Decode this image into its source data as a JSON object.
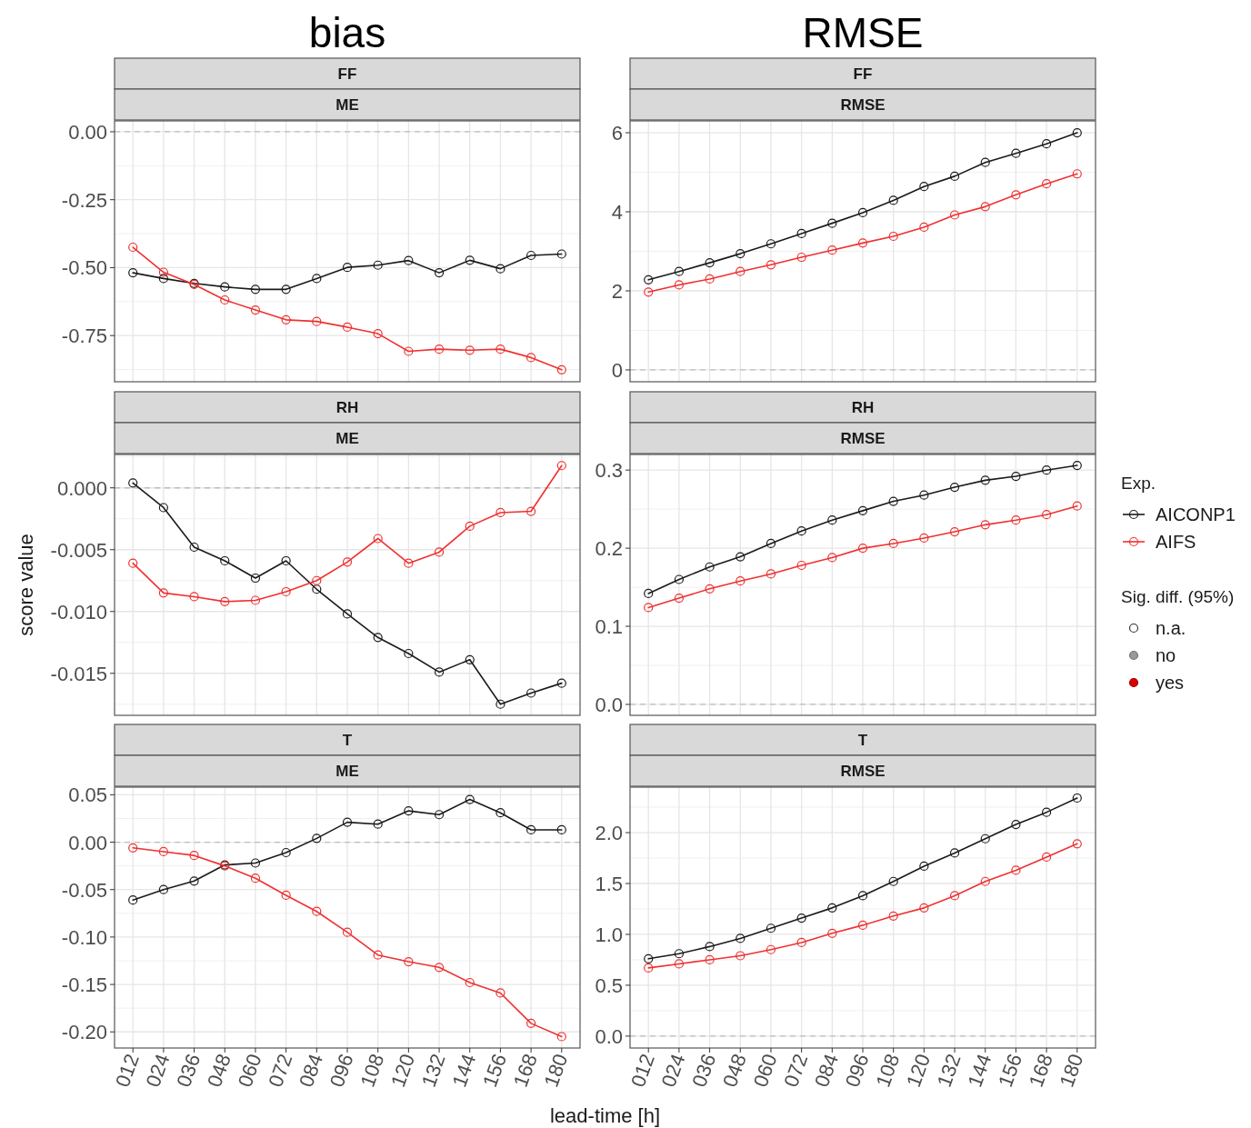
{
  "chart_data": [
    {
      "type": "line",
      "title": "FF",
      "subtitle": "ME",
      "annotations": [
        "bias"
      ],
      "categories": [
        "012",
        "024",
        "036",
        "048",
        "060",
        "072",
        "084",
        "096",
        "108",
        "120",
        "132",
        "144",
        "156",
        "168",
        "180"
      ],
      "series": [
        {
          "color": "#1a1a1a",
          "values": [
            -0.519,
            -0.54,
            -0.558,
            -0.571,
            -0.58,
            -0.58,
            -0.54,
            -0.499,
            -0.491,
            -0.474,
            -0.519,
            -0.473,
            -0.504,
            -0.455,
            -0.45
          ]
        },
        {
          "color": "#f03030",
          "values": [
            -0.425,
            -0.517,
            -0.562,
            -0.619,
            -0.656,
            -0.692,
            -0.698,
            -0.719,
            -0.743,
            -0.808,
            -0.8,
            -0.804,
            -0.8,
            -0.831,
            -0.876
          ]
        }
      ],
      "ylim": [
        -0.92,
        0.04
      ],
      "yticks": [
        {
          "value": 0,
          "label": "0.00"
        },
        {
          "value": -0.25,
          "label": "-0.25"
        },
        {
          "value": -0.5,
          "label": "-0.50"
        },
        {
          "value": -0.75,
          "label": "-0.75"
        }
      ],
      "grid": true,
      "marker": "circle",
      "tick_labels": "y",
      "ref_lines": [
        {
          "axis": "y",
          "value": 0,
          "color": "#bdbdbd",
          "line_style": "dashed"
        }
      ]
    },
    {
      "type": "line",
      "title": "FF",
      "subtitle": "RMSE",
      "annotations": [
        "RMSE"
      ],
      "categories": [
        "012",
        "024",
        "036",
        "048",
        "060",
        "072",
        "084",
        "096",
        "108",
        "120",
        "132",
        "144",
        "156",
        "168",
        "180"
      ],
      "series": [
        {
          "color": "#1a1a1a",
          "values": [
            2.28,
            2.49,
            2.71,
            2.94,
            3.19,
            3.45,
            3.71,
            3.98,
            4.29,
            4.64,
            4.9,
            5.25,
            5.48,
            5.72,
            6.0
          ]
        },
        {
          "color": "#f03030",
          "values": [
            1.97,
            2.15,
            2.3,
            2.49,
            2.66,
            2.85,
            3.03,
            3.21,
            3.38,
            3.61,
            3.92,
            4.13,
            4.43,
            4.71,
            4.96
          ]
        }
      ],
      "ylim": [
        -0.3,
        6.3
      ],
      "yticks": [
        0,
        2,
        4,
        6
      ],
      "grid": true,
      "marker": "circle",
      "tick_labels": "y",
      "ref_lines": [
        {
          "axis": "y",
          "value": 0,
          "color": "#bdbdbd",
          "line_style": "dashed"
        }
      ]
    },
    {
      "type": "line",
      "title": "RH",
      "subtitle": "ME",
      "ylabel": "score value",
      "categories": [
        "012",
        "024",
        "036",
        "048",
        "060",
        "072",
        "084",
        "096",
        "108",
        "120",
        "132",
        "144",
        "156",
        "168",
        "180"
      ],
      "series": [
        {
          "color": "#1a1a1a",
          "values": [
            0.0004,
            -0.0016,
            -0.0048,
            -0.0059,
            -0.0073,
            -0.0059,
            -0.0082,
            -0.0102,
            -0.0121,
            -0.0134,
            -0.0149,
            -0.0139,
            -0.0175,
            -0.0166,
            -0.0158
          ]
        },
        {
          "color": "#f03030",
          "values": [
            -0.0061,
            -0.0085,
            -0.0088,
            -0.0092,
            -0.0091,
            -0.0084,
            -0.0075,
            -0.006,
            -0.0041,
            -0.0061,
            -0.0052,
            -0.0031,
            -0.002,
            -0.0019,
            0.0018
          ]
        }
      ],
      "ylim": [
        -0.0184,
        0.0027
      ],
      "yticks": [
        {
          "value": 0,
          "label": "0.000"
        },
        {
          "value": -0.005,
          "label": "-0.005"
        },
        {
          "value": -0.01,
          "label": "-0.010"
        },
        {
          "value": -0.015,
          "label": "-0.015"
        }
      ],
      "grid": true,
      "marker": "circle",
      "tick_labels": "y",
      "ref_lines": [
        {
          "axis": "y",
          "value": 0,
          "color": "#bdbdbd",
          "line_style": "dashed"
        }
      ]
    },
    {
      "type": "line",
      "title": "RH",
      "subtitle": "RMSE",
      "legend": "right",
      "legend_title": "Exp.",
      "annotations": [
        "Sig. diff. (95%)",
        "n.a.",
        "no",
        "yes"
      ],
      "categories": [
        "012",
        "024",
        "036",
        "048",
        "060",
        "072",
        "084",
        "096",
        "108",
        "120",
        "132",
        "144",
        "156",
        "168",
        "180"
      ],
      "series": [
        {
          "name": "AICONP1",
          "color": "#1a1a1a",
          "values": [
            0.142,
            0.16,
            0.176,
            0.189,
            0.206,
            0.222,
            0.236,
            0.248,
            0.26,
            0.268,
            0.278,
            0.287,
            0.292,
            0.3,
            0.306
          ]
        },
        {
          "name": "AIFS",
          "color": "#f03030",
          "values": [
            0.124,
            0.136,
            0.148,
            0.158,
            0.167,
            0.178,
            0.188,
            0.2,
            0.206,
            0.213,
            0.221,
            0.23,
            0.236,
            0.243,
            0.254
          ]
        }
      ],
      "ylim": [
        -0.014,
        0.32
      ],
      "yticks": [
        {
          "value": 0,
          "label": "0.0"
        },
        {
          "value": 0.1,
          "label": "0.1"
        },
        {
          "value": 0.2,
          "label": "0.2"
        },
        {
          "value": 0.3,
          "label": "0.3"
        }
      ],
      "grid": true,
      "marker": "circle",
      "tick_labels": "y",
      "ref_lines": [
        {
          "axis": "y",
          "value": 0,
          "color": "#bdbdbd",
          "line_style": "dashed"
        }
      ]
    },
    {
      "type": "line",
      "title": "T",
      "subtitle": "ME",
      "xlabel": "lead-time [h]",
      "categories": [
        "012",
        "024",
        "036",
        "048",
        "060",
        "072",
        "084",
        "096",
        "108",
        "120",
        "132",
        "144",
        "156",
        "168",
        "180"
      ],
      "series": [
        {
          "color": "#1a1a1a",
          "values": [
            -0.061,
            -0.05,
            -0.041,
            -0.024,
            -0.022,
            -0.011,
            0.004,
            0.021,
            0.019,
            0.033,
            0.029,
            0.045,
            0.031,
            0.013,
            0.013
          ]
        },
        {
          "color": "#f03030",
          "values": [
            -0.006,
            -0.01,
            -0.014,
            -0.025,
            -0.038,
            -0.056,
            -0.073,
            -0.095,
            -0.119,
            -0.126,
            -0.132,
            -0.148,
            -0.159,
            -0.191,
            -0.205
          ]
        }
      ],
      "ylim": [
        -0.217,
        0.058
      ],
      "yticks": [
        {
          "value": 0.05,
          "label": "0.05"
        },
        {
          "value": 0,
          "label": "0.00"
        },
        {
          "value": -0.05,
          "label": "-0.05"
        },
        {
          "value": -0.1,
          "label": "-0.10"
        },
        {
          "value": -0.15,
          "label": "-0.15"
        },
        {
          "value": -0.2,
          "label": "-0.20"
        }
      ],
      "grid": true,
      "marker": "circle",
      "ref_lines": [
        {
          "axis": "y",
          "value": 0,
          "color": "#bdbdbd",
          "line_style": "dashed"
        }
      ]
    },
    {
      "type": "line",
      "title": "T",
      "subtitle": "RMSE",
      "categories": [
        "012",
        "024",
        "036",
        "048",
        "060",
        "072",
        "084",
        "096",
        "108",
        "120",
        "132",
        "144",
        "156",
        "168",
        "180"
      ],
      "series": [
        {
          "color": "#1a1a1a",
          "values": [
            0.76,
            0.81,
            0.88,
            0.96,
            1.06,
            1.16,
            1.26,
            1.38,
            1.52,
            1.67,
            1.8,
            1.94,
            2.08,
            2.2,
            2.34
          ]
        },
        {
          "color": "#f03030",
          "values": [
            0.67,
            0.71,
            0.75,
            0.79,
            0.85,
            0.92,
            1.01,
            1.09,
            1.18,
            1.26,
            1.38,
            1.52,
            1.63,
            1.76,
            1.89
          ]
        }
      ],
      "ylim": [
        -0.117,
        2.447
      ],
      "yticks": [
        {
          "value": 0,
          "label": "0.0"
        },
        {
          "value": 0.5,
          "label": "0.5"
        },
        {
          "value": 1,
          "label": "1.0"
        },
        {
          "value": 1.5,
          "label": "1.5"
        },
        {
          "value": 2,
          "label": "2.0"
        }
      ],
      "grid": true,
      "marker": "circle",
      "ref_lines": [
        {
          "axis": "y",
          "value": 0,
          "color": "#bdbdbd",
          "line_style": "dashed"
        }
      ]
    }
  ]
}
